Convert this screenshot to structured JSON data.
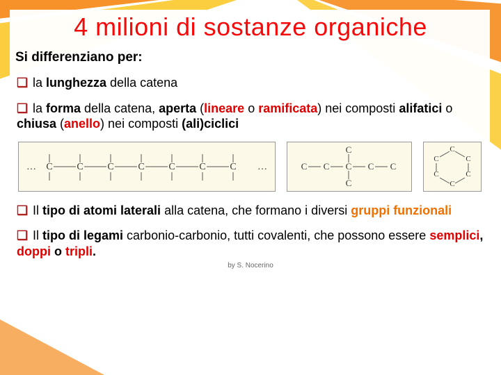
{
  "title": "4 milioni di sostanze organiche",
  "intro": "Si differenziano per:",
  "bullets": {
    "b1": {
      "pre": "la ",
      "kw": "lunghezza",
      "post": " della catena"
    },
    "b2": {
      "t1": "la ",
      "forma": "forma",
      "t2": " della catena, ",
      "aperta": "aperta",
      "t3": " (",
      "lineare": "lineare",
      "t4": " o ",
      "ramificata": "ramificata",
      "t5": ") nei composti ",
      "alifatici": "alifatici",
      "t6": " o ",
      "chiusa": "chiusa",
      "t7": " (",
      "anello": "anello",
      "t8": ") nei composti ",
      "aliciclici": "(ali)ciclici"
    },
    "b3": {
      "t1": "Il ",
      "tipo": "tipo di atomi laterali",
      "t2": " alla catena, che formano i diversi ",
      "gf": "gruppi funzionali"
    },
    "b4": {
      "t1": "Il ",
      "tipo": "tipo di legami",
      "t2": " carbonio-carbonio, tutti covalenti, che possono essere ",
      "semplici": "semplici",
      "sep1": ", ",
      "doppi": "doppi",
      "sep2": " o ",
      "tripli": "tripli",
      "dot": "."
    }
  },
  "footer": "by S. Nocerino",
  "colors": {
    "title": "#f40a0a",
    "red": "#e00000",
    "orange": "#f07000",
    "diag_bg": "#fdf9e8",
    "ray_red": "#e63a1a",
    "ray_orange": "#f58c1e",
    "ray_yellow": "#f9c929"
  },
  "diagram": {
    "linear": {
      "atom": "C",
      "repeat": 7,
      "ellipsis": "…"
    },
    "branched_atom": "C",
    "ring_atom": "C"
  }
}
